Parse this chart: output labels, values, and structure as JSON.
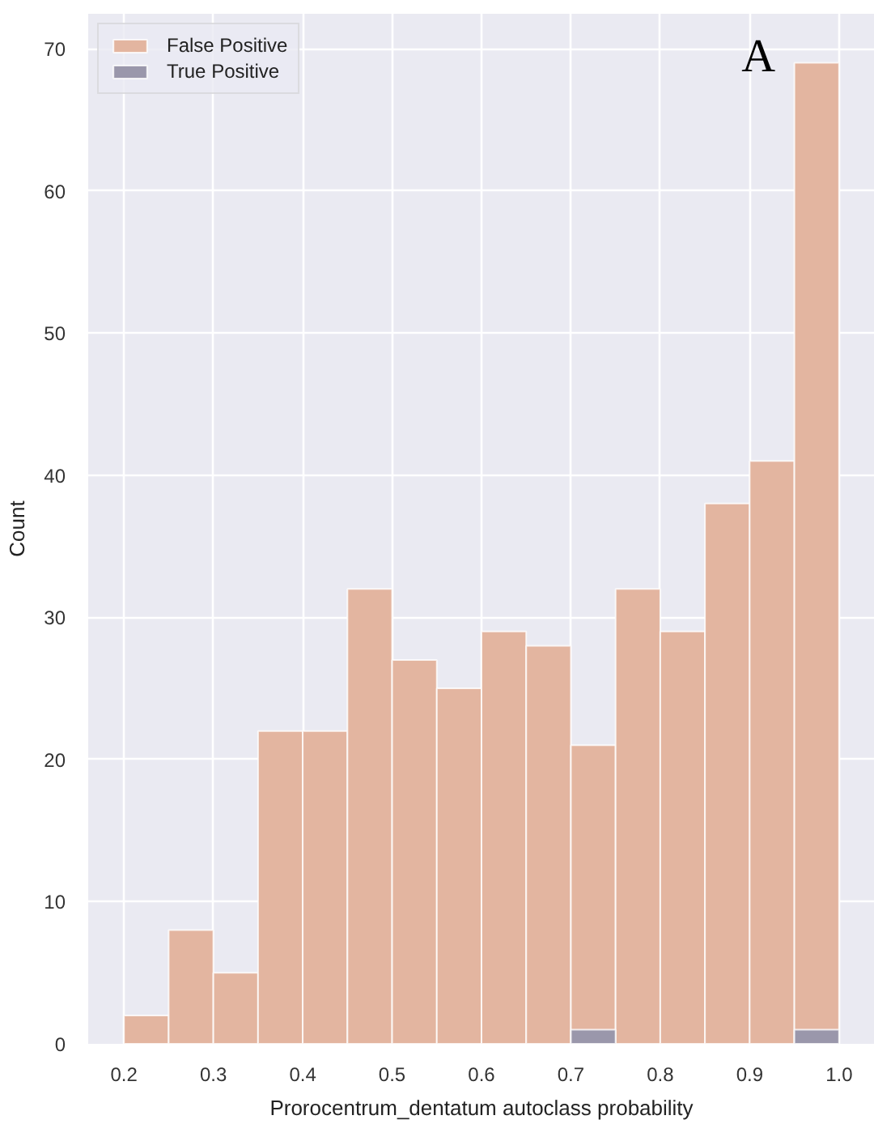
{
  "chart_data": {
    "type": "histogram",
    "xlabel": "Prorocentrum_dentatum autoclass probability",
    "ylabel": "Count",
    "annotations": [
      "A"
    ],
    "bins": [
      0.2,
      0.25,
      0.3,
      0.35,
      0.4,
      0.45,
      0.5,
      0.55,
      0.6,
      0.65,
      0.7,
      0.75,
      0.8,
      0.85,
      0.9,
      0.95,
      1.0
    ],
    "series": [
      {
        "name": "False Positive",
        "color": "#e3b5a0",
        "values": [
          2,
          8,
          5,
          22,
          22,
          32,
          27,
          25,
          29,
          28,
          21,
          32,
          29,
          38,
          41,
          69
        ]
      },
      {
        "name": "True Positive",
        "color": "#9a97ab",
        "values": [
          0,
          0,
          0,
          0,
          0,
          0,
          0,
          0,
          0,
          0,
          1,
          0,
          0,
          0,
          0,
          1
        ]
      }
    ],
    "xlim": [
      0.16,
      1.04
    ],
    "ylim": [
      0,
      72.45
    ],
    "xticks": [
      0.2,
      0.3,
      0.4,
      0.5,
      0.6,
      0.7,
      0.8,
      0.9,
      {
        "value": 1,
        "label": "1.0"
      }
    ],
    "yticks": [
      0,
      10,
      20,
      30,
      40,
      50,
      60,
      70
    ],
    "grid": true,
    "legend": "top left"
  }
}
